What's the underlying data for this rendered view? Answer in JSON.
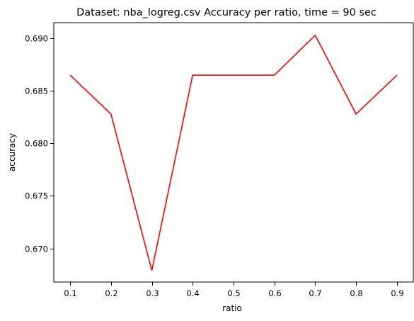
{
  "chart_data": {
    "type": "line",
    "title": "Dataset: nba_logreg.csv Accuracy per ratio, time = 90 sec",
    "xlabel": "ratio",
    "ylabel": "accuracy",
    "xlim": [
      0.06,
      0.94
    ],
    "ylim": [
      0.6668,
      0.6915
    ],
    "xticks": [
      0.1,
      0.2,
      0.3,
      0.4,
      0.5,
      0.6,
      0.7,
      0.8,
      0.9
    ],
    "xtick_labels": [
      "0.1",
      "0.2",
      "0.3",
      "0.4",
      "0.5",
      "0.6",
      "0.7",
      "0.8",
      "0.9"
    ],
    "yticks": [
      0.67,
      0.675,
      0.68,
      0.685,
      0.69
    ],
    "ytick_labels": [
      "0.670",
      "0.675",
      "0.680",
      "0.685",
      "0.690"
    ],
    "grid": false,
    "series": [
      {
        "color": "#ff0000",
        "x": [
          0.1,
          0.2,
          0.3,
          0.4,
          0.5,
          0.6,
          0.7,
          0.8,
          0.9
        ],
        "y": [
          0.6865,
          0.6828,
          0.6679,
          0.6865,
          0.6865,
          0.6865,
          0.6903,
          0.6828,
          0.6865
        ]
      }
    ]
  }
}
